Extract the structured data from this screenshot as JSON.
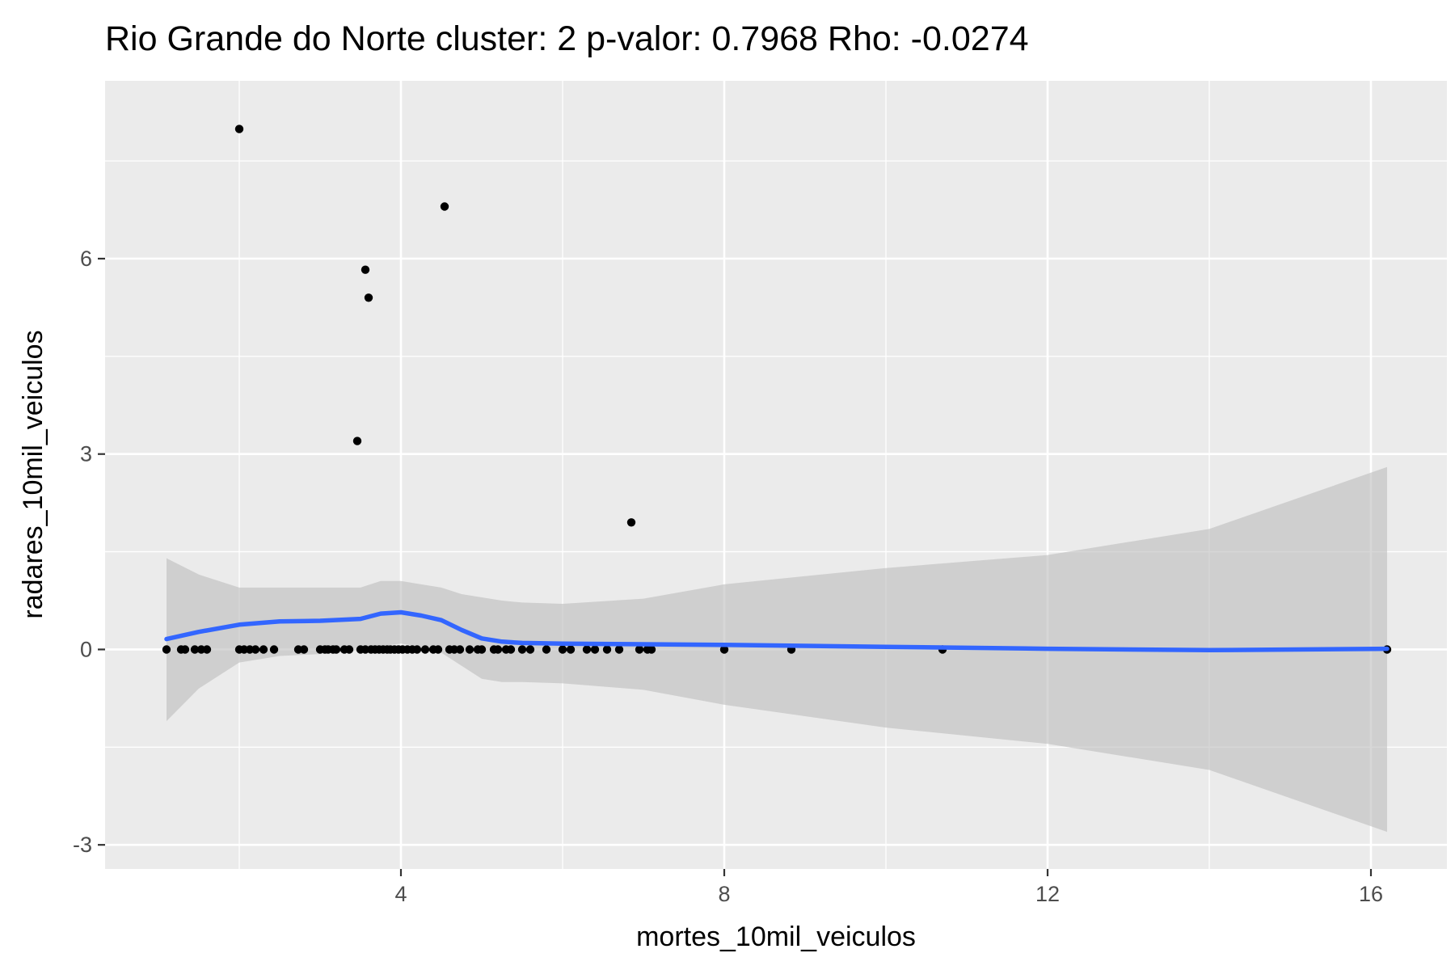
{
  "chart_data": {
    "type": "scatter",
    "title": "Rio Grande do Norte cluster: 2 p-valor: 0.7968 Rho: -0.0274",
    "xlabel": "mortes_10mil_veiculos",
    "ylabel": "radares_10mil_veiculos",
    "xlim": [
      0.34,
      16.94
    ],
    "ylim": [
      -3.37,
      8.73
    ],
    "x_ticks": [
      4,
      8,
      12,
      16
    ],
    "x_tick_labels": [
      "4",
      "8",
      "12",
      "16"
    ],
    "y_ticks": [
      -3,
      0,
      3,
      6
    ],
    "y_tick_labels": [
      "-3",
      "0",
      "3",
      "6"
    ],
    "grid": true,
    "legend": "none",
    "colors": {
      "panel_background": "#ebebeb",
      "grid_line": "#ffffff",
      "point": "#000000",
      "smooth_line": "#3366ff",
      "confidence_band": "#bdbdbd"
    },
    "points": [
      {
        "x": 2.0,
        "y": 7.99
      },
      {
        "x": 4.54,
        "y": 6.8
      },
      {
        "x": 3.56,
        "y": 5.83
      },
      {
        "x": 3.6,
        "y": 5.4
      },
      {
        "x": 3.46,
        "y": 3.2
      },
      {
        "x": 6.85,
        "y": 1.95
      },
      {
        "x": 1.1,
        "y": 0
      },
      {
        "x": 1.28,
        "y": 0
      },
      {
        "x": 1.33,
        "y": 0
      },
      {
        "x": 1.45,
        "y": 0
      },
      {
        "x": 1.53,
        "y": 0
      },
      {
        "x": 1.6,
        "y": 0
      },
      {
        "x": 2.0,
        "y": 0
      },
      {
        "x": 2.06,
        "y": 0
      },
      {
        "x": 2.13,
        "y": 0
      },
      {
        "x": 2.2,
        "y": 0
      },
      {
        "x": 2.3,
        "y": 0
      },
      {
        "x": 2.43,
        "y": 0
      },
      {
        "x": 2.73,
        "y": 0
      },
      {
        "x": 2.8,
        "y": 0
      },
      {
        "x": 3.0,
        "y": 0
      },
      {
        "x": 3.06,
        "y": 0
      },
      {
        "x": 3.1,
        "y": 0
      },
      {
        "x": 3.16,
        "y": 0
      },
      {
        "x": 3.2,
        "y": 0
      },
      {
        "x": 3.3,
        "y": 0
      },
      {
        "x": 3.36,
        "y": 0
      },
      {
        "x": 3.5,
        "y": 0
      },
      {
        "x": 3.56,
        "y": 0
      },
      {
        "x": 3.63,
        "y": 0
      },
      {
        "x": 3.68,
        "y": 0
      },
      {
        "x": 3.73,
        "y": 0
      },
      {
        "x": 3.78,
        "y": 0
      },
      {
        "x": 3.83,
        "y": 0
      },
      {
        "x": 3.87,
        "y": 0
      },
      {
        "x": 3.92,
        "y": 0
      },
      {
        "x": 3.97,
        "y": 0
      },
      {
        "x": 4.02,
        "y": 0
      },
      {
        "x": 4.08,
        "y": 0
      },
      {
        "x": 4.14,
        "y": 0
      },
      {
        "x": 4.2,
        "y": 0
      },
      {
        "x": 4.3,
        "y": 0
      },
      {
        "x": 4.4,
        "y": 0
      },
      {
        "x": 4.46,
        "y": 0
      },
      {
        "x": 4.6,
        "y": 0
      },
      {
        "x": 4.66,
        "y": 0
      },
      {
        "x": 4.73,
        "y": 0
      },
      {
        "x": 4.85,
        "y": 0
      },
      {
        "x": 4.95,
        "y": 0
      },
      {
        "x": 5.0,
        "y": 0
      },
      {
        "x": 5.15,
        "y": 0
      },
      {
        "x": 5.2,
        "y": 0
      },
      {
        "x": 5.3,
        "y": 0
      },
      {
        "x": 5.36,
        "y": 0
      },
      {
        "x": 5.5,
        "y": 0
      },
      {
        "x": 5.6,
        "y": 0
      },
      {
        "x": 5.8,
        "y": 0
      },
      {
        "x": 6.0,
        "y": 0
      },
      {
        "x": 6.1,
        "y": 0
      },
      {
        "x": 6.3,
        "y": 0
      },
      {
        "x": 6.4,
        "y": 0
      },
      {
        "x": 6.55,
        "y": 0
      },
      {
        "x": 6.7,
        "y": 0
      },
      {
        "x": 6.95,
        "y": 0
      },
      {
        "x": 7.05,
        "y": 0
      },
      {
        "x": 7.1,
        "y": 0
      },
      {
        "x": 8.0,
        "y": 0
      },
      {
        "x": 8.83,
        "y": 0
      },
      {
        "x": 10.7,
        "y": 0
      },
      {
        "x": 16.2,
        "y": 0
      }
    ],
    "smooth": {
      "x": [
        1.1,
        1.5,
        2.0,
        2.5,
        3.0,
        3.5,
        3.75,
        4.0,
        4.25,
        4.5,
        4.75,
        5.0,
        5.25,
        5.5,
        6.0,
        7.0,
        8.0,
        10.0,
        12.0,
        14.0,
        16.2
      ],
      "y": [
        0.16,
        0.27,
        0.38,
        0.43,
        0.44,
        0.47,
        0.55,
        0.57,
        0.52,
        0.45,
        0.3,
        0.17,
        0.12,
        0.1,
        0.09,
        0.08,
        0.07,
        0.04,
        0.01,
        -0.01,
        0.01
      ],
      "upper": [
        1.4,
        1.15,
        0.95,
        0.95,
        0.95,
        0.95,
        1.05,
        1.05,
        1.0,
        0.95,
        0.85,
        0.8,
        0.75,
        0.72,
        0.7,
        0.78,
        1.0,
        1.25,
        1.45,
        1.85,
        2.8
      ],
      "lower": [
        -1.1,
        -0.6,
        -0.2,
        -0.1,
        -0.07,
        -0.01,
        0.05,
        0.09,
        0.04,
        -0.05,
        -0.25,
        -0.45,
        -0.5,
        -0.5,
        -0.52,
        -0.62,
        -0.85,
        -1.2,
        -1.45,
        -1.85,
        -2.8
      ]
    }
  }
}
